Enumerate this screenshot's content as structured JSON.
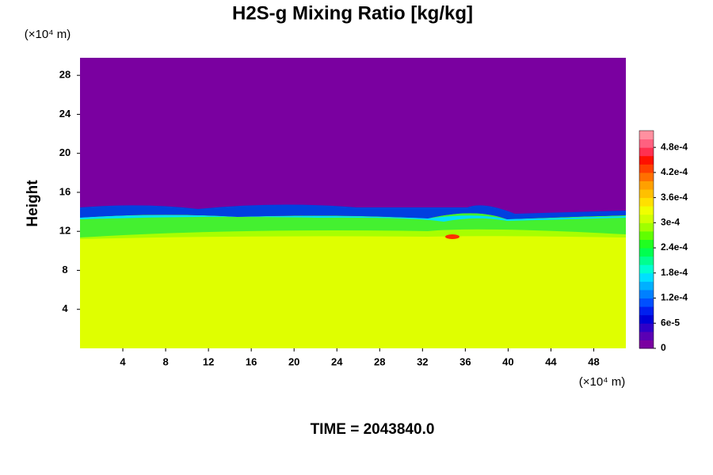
{
  "chart_data": {
    "type": "contour",
    "title": "H2S-g Mixing Ratio [kg/kg]",
    "y_label": "Height",
    "x_unit": "(×10⁴ m)",
    "y_unit": "(×10⁴ m)",
    "footer": "TIME = 2043840.0",
    "xlim": [
      0,
      51
    ],
    "xticks": [
      4,
      8,
      12,
      16,
      20,
      24,
      28,
      32,
      36,
      40,
      44,
      48
    ],
    "ylim": [
      0,
      29.8
    ],
    "yticks": [
      4,
      8,
      12,
      16,
      20,
      24,
      28
    ],
    "clim": [
      0,
      0.00052
    ],
    "cticks": [
      0,
      {
        "value": 6e-05,
        "label": "6e-5"
      },
      {
        "value": 0.00012,
        "label": "1.2e-4"
      },
      {
        "value": 0.00018,
        "label": "1.8e-4"
      },
      {
        "value": 0.00024,
        "label": "2.4e-4"
      },
      {
        "value": 0.0003,
        "label": "3e-4"
      },
      {
        "value": 0.00036,
        "label": "3.6e-4"
      },
      {
        "value": 0.00042,
        "label": "4.2e-4"
      },
      {
        "value": 0.00048,
        "label": "4.8e-4"
      }
    ],
    "colormap": [
      "#7a00a0",
      "#5a00b4",
      "#3000c8",
      "#0000d8",
      "#0020f0",
      "#0050ff",
      "#0080ff",
      "#00b0ff",
      "#00e0ff",
      "#00ffd0",
      "#00ff90",
      "#00ff50",
      "#20ff20",
      "#60ff00",
      "#a0ff00",
      "#d0ff00",
      "#f0ff00",
      "#ffe000",
      "#ffc000",
      "#ffa000",
      "#ff7000",
      "#ff4000",
      "#ff1000",
      "#ff3050",
      "#ff6080",
      "#ff90a0"
    ]
  }
}
